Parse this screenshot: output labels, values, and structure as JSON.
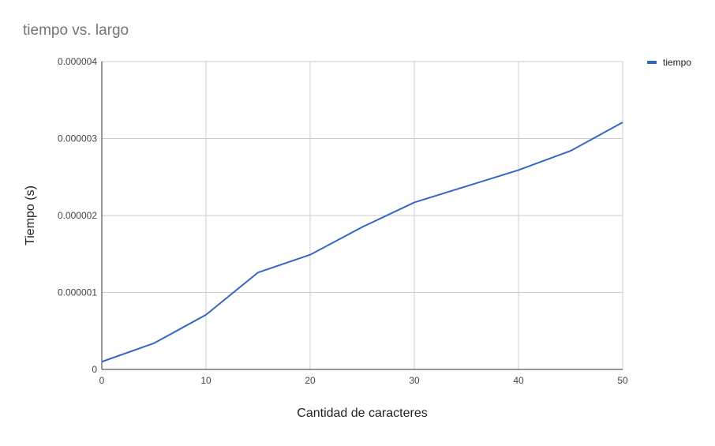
{
  "chart_data": {
    "type": "line",
    "title": "tiempo vs. largo",
    "xlabel": "Cantidad de caracteres",
    "ylabel": "Tiempo (s)",
    "xlim": [
      0,
      50
    ],
    "ylim": [
      0,
      4e-06
    ],
    "x_ticks": [
      0,
      10,
      20,
      30,
      40,
      50
    ],
    "x_tick_labels": [
      "0",
      "10",
      "20",
      "30",
      "40",
      "50"
    ],
    "y_ticks": [
      0,
      1e-06,
      2e-06,
      3e-06,
      4e-06
    ],
    "y_tick_labels": [
      "0",
      "0.000001",
      "0.000002",
      "0.000003",
      "0.000004"
    ],
    "grid": true,
    "legend_position": "top-right",
    "series": [
      {
        "name": "tiempo",
        "color": "#3366cc",
        "x": [
          0,
          5,
          10,
          15,
          20,
          25,
          30,
          35,
          40,
          45,
          50
        ],
        "y": [
          1e-07,
          3.4e-07,
          7.1e-07,
          1.26e-06,
          1.49e-06,
          1.85e-06,
          2.17e-06,
          2.38e-06,
          2.59e-06,
          2.84e-06,
          3.21e-06
        ]
      }
    ]
  }
}
